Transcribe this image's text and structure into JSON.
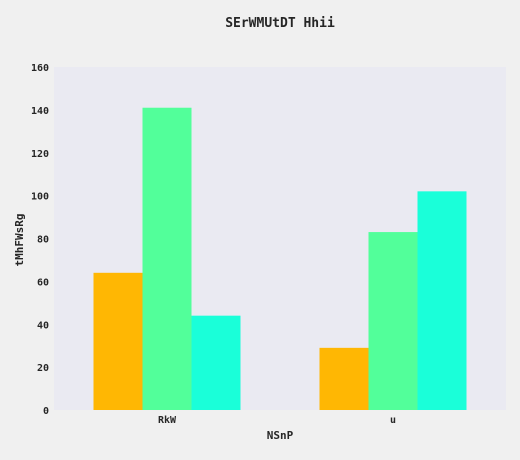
{
  "chart_data": {
    "type": "bar",
    "title": "SErWMUtDT Hhii",
    "xlabel": "NSnP",
    "ylabel": "tMhFWsRg",
    "categories": [
      "RkW",
      "u"
    ],
    "series": [
      {
        "values": [
          64,
          29
        ],
        "color": "#ffb703"
      },
      {
        "values": [
          141,
          83
        ],
        "color": "#52ff9a"
      },
      {
        "values": [
          44,
          102
        ],
        "color": "#1affd9"
      }
    ],
    "ylim": [
      0,
      160
    ],
    "yticks": [
      0,
      20,
      40,
      60,
      80,
      100,
      120,
      140,
      160
    ],
    "grid": false,
    "plot_background": "#eaeaf2",
    "page_background": "#f0f0f0"
  }
}
